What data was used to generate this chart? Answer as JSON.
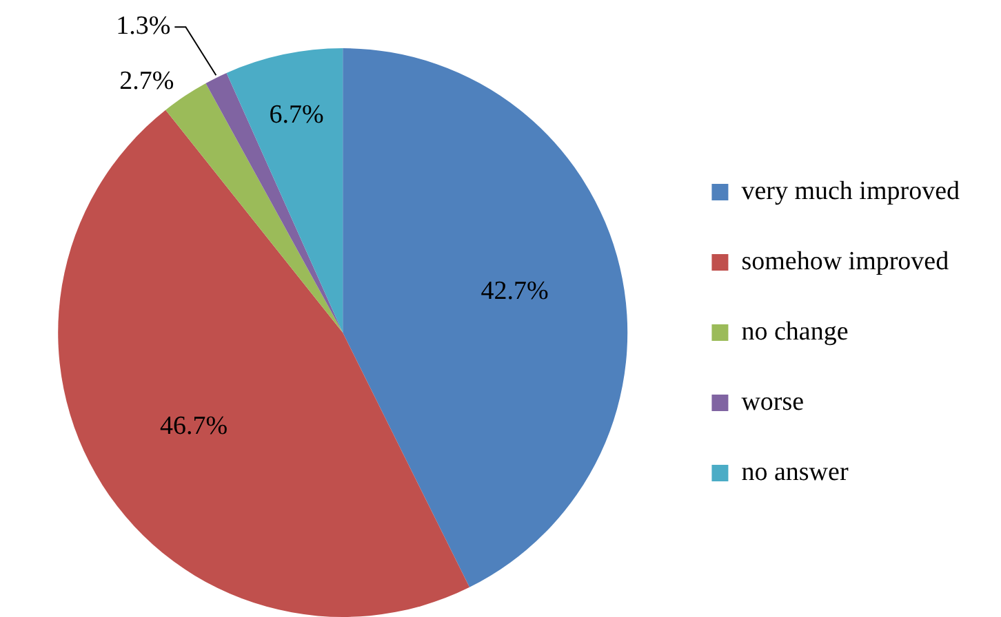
{
  "chart_data": {
    "type": "pie",
    "categories": [
      "very much improved",
      "somehow improved",
      "no change",
      "worse",
      "no answer"
    ],
    "values": [
      42.7,
      46.7,
      2.7,
      1.3,
      6.7
    ],
    "colors": [
      "#4f81bd",
      "#c0504d",
      "#9bbb59",
      "#8064a2",
      "#4bacc6"
    ],
    "value_labels": [
      "42.7%",
      "46.7%",
      "2.7%",
      "1.3%",
      "6.7%"
    ],
    "legend": "right"
  }
}
